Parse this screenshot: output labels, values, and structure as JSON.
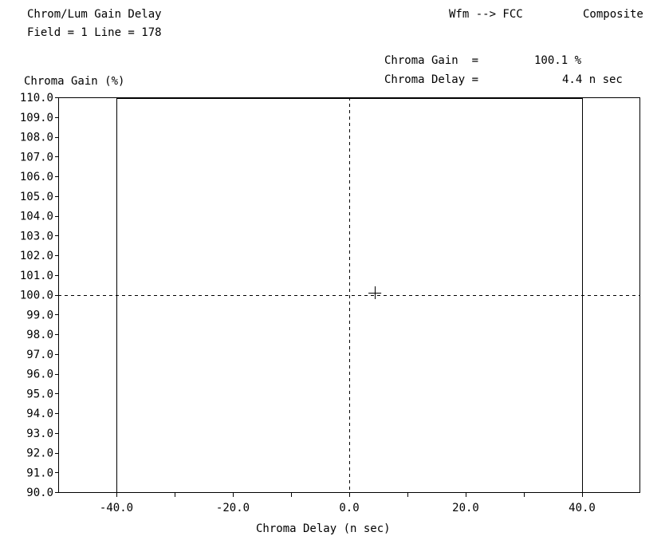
{
  "header": {
    "measurement": "Chrom/Lum Gain Delay",
    "field_line": "Field = 1 Line = 178",
    "mode": "Wfm --> FCC",
    "signal": "Composite"
  },
  "readout": {
    "gain_label": "Chroma Gain  =",
    "gain_value": "100.1 %",
    "delay_label": "Chroma Delay =",
    "delay_value": "4.4 n sec"
  },
  "chart_data": {
    "type": "scatter",
    "ylabel": "Chroma Gain (%)",
    "xlabel": "Chroma Delay (n sec)",
    "xlim": [
      -50,
      50
    ],
    "ylim": [
      90,
      110
    ],
    "x_tick_labels": [
      -40,
      -20,
      0,
      20,
      40
    ],
    "x_tick_label_text": [
      "-40.0",
      "-20.0",
      "0.0",
      "20.0",
      "40.0"
    ],
    "x_minor_ticks": [
      -30,
      -10,
      10,
      30
    ],
    "y_ticks": [
      110,
      109,
      108,
      107,
      106,
      105,
      104,
      103,
      102,
      101,
      100,
      99,
      98,
      97,
      96,
      95,
      94,
      93,
      92,
      91,
      90
    ],
    "y_tick_label_text": [
      "110.0",
      "109.0",
      "108.0",
      "107.0",
      "106.0",
      "105.0",
      "104.0",
      "103.0",
      "102.0",
      "101.0",
      "100.0",
      "99.0",
      "98.0",
      "97.0",
      "96.0",
      "95.0",
      "94.0",
      "93.0",
      "92.0",
      "91.0",
      "90.0"
    ],
    "limit_lines_x": [
      -40,
      40
    ],
    "reference_dashed": {
      "x": 0,
      "y": 100
    },
    "points": [
      {
        "x": 4.4,
        "y": 100.1
      }
    ],
    "grid": false
  }
}
